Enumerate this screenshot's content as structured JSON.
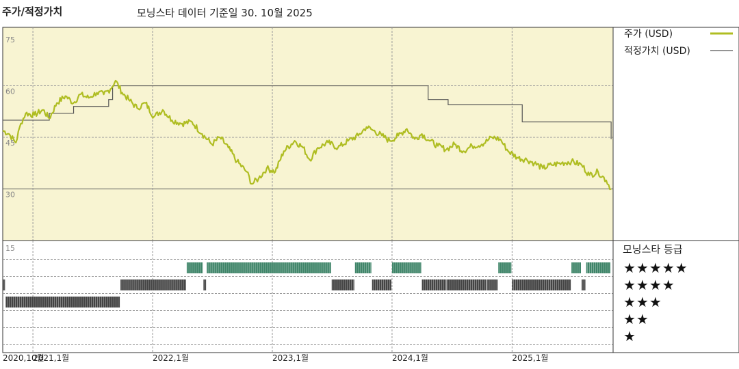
{
  "header": {
    "section_title": "주가/적정가치",
    "subtitle": "모닝스타 데이터 기준일 30. 10월 2025"
  },
  "colors": {
    "price_line": "#AFBD22",
    "fair_value_line": "#555555",
    "upper_panel_bg": "#F8F4D2",
    "five_star": "#3E8468",
    "four_star": "#444444",
    "three_star": "#444444"
  },
  "chart_data": [
    {
      "type": "line",
      "title": "",
      "y_ticks": [
        "75",
        "60",
        "45",
        "30"
      ],
      "ylim": [
        15,
        77
      ],
      "xlim": [
        "2020-10-01",
        "2025-11-05"
      ],
      "x_ticks": [
        {
          "date": "2020-10-01",
          "label": "2020,10월"
        },
        {
          "date": "2021-01-01",
          "label": "2021,1월"
        },
        {
          "date": "2022-01-01",
          "label": "2022,1월"
        },
        {
          "date": "2023-01-01",
          "label": "2023,1월"
        },
        {
          "date": "2024-01-01",
          "label": "2024,1월"
        },
        {
          "date": "2025-01-01",
          "label": "2025,1월"
        }
      ],
      "grid": true,
      "legend_position": "right",
      "series": [
        {
          "name": "주가 (USD)",
          "points": [
            [
              "2020-10-01",
              47
            ],
            [
              "2020-10-20",
              46
            ],
            [
              "2020-11-10",
              43.5
            ],
            [
              "2020-11-25",
              49
            ],
            [
              "2020-12-10",
              52
            ],
            [
              "2021-01-05",
              51.5
            ],
            [
              "2021-02-01",
              53
            ],
            [
              "2021-02-20",
              50.5
            ],
            [
              "2021-03-15",
              55
            ],
            [
              "2021-04-10",
              57
            ],
            [
              "2021-05-05",
              55
            ],
            [
              "2021-05-25",
              57.5
            ],
            [
              "2021-06-20",
              56.5
            ],
            [
              "2021-07-15",
              58
            ],
            [
              "2021-08-05",
              57.5
            ],
            [
              "2021-08-25",
              59
            ],
            [
              "2021-09-10",
              61.5
            ],
            [
              "2021-09-30",
              58
            ],
            [
              "2021-10-20",
              56
            ],
            [
              "2021-11-15",
              53.5
            ],
            [
              "2021-12-10",
              55
            ],
            [
              "2022-01-05",
              51
            ],
            [
              "2022-02-01",
              53
            ],
            [
              "2022-03-01",
              50
            ],
            [
              "2022-04-01",
              49
            ],
            [
              "2022-05-01",
              49.5
            ],
            [
              "2022-06-01",
              46
            ],
            [
              "2022-07-01",
              43
            ],
            [
              "2022-07-25",
              45
            ],
            [
              "2022-08-20",
              42
            ],
            [
              "2022-09-15",
              38
            ],
            [
              "2022-10-15",
              35
            ],
            [
              "2022-10-30",
              31.5
            ],
            [
              "2022-11-20",
              33
            ],
            [
              "2022-12-15",
              36
            ],
            [
              "2023-01-10",
              35
            ],
            [
              "2023-02-05",
              41
            ],
            [
              "2023-03-10",
              44
            ],
            [
              "2023-04-05",
              42
            ],
            [
              "2023-04-25",
              38.5
            ],
            [
              "2023-05-20",
              42
            ],
            [
              "2023-06-20",
              43.5
            ],
            [
              "2023-07-20",
              42
            ],
            [
              "2023-08-20",
              44
            ],
            [
              "2023-09-20",
              45.5
            ],
            [
              "2023-10-15",
              48
            ],
            [
              "2023-11-05",
              47
            ],
            [
              "2023-12-01",
              45.5
            ],
            [
              "2023-12-25",
              44
            ],
            [
              "2024-01-20",
              45.5
            ],
            [
              "2024-02-15",
              47.5
            ],
            [
              "2024-03-10",
              44.5
            ],
            [
              "2024-04-01",
              46
            ],
            [
              "2024-04-25",
              44
            ],
            [
              "2024-05-20",
              42.5
            ],
            [
              "2024-06-15",
              41.5
            ],
            [
              "2024-07-10",
              43
            ],
            [
              "2024-08-05",
              41
            ],
            [
              "2024-09-01",
              42.5
            ],
            [
              "2024-10-01",
              43
            ],
            [
              "2024-11-01",
              45
            ],
            [
              "2024-11-25",
              44.5
            ],
            [
              "2024-12-20",
              41
            ],
            [
              "2025-01-20",
              39
            ],
            [
              "2025-02-15",
              38.5
            ],
            [
              "2025-03-10",
              37.5
            ],
            [
              "2025-04-05",
              36
            ],
            [
              "2025-05-01",
              37
            ],
            [
              "2025-06-01",
              37.5
            ],
            [
              "2025-07-01",
              38
            ],
            [
              "2025-08-01",
              37
            ],
            [
              "2025-08-25",
              34
            ],
            [
              "2025-09-20",
              35
            ],
            [
              "2025-10-15",
              32.5
            ],
            [
              "2025-10-30",
              30
            ]
          ]
        },
        {
          "name": "적정가치 (USD)",
          "steps": [
            [
              "2020-10-01",
              50
            ],
            [
              "2021-02-20",
              52
            ],
            [
              "2021-05-05",
              54
            ],
            [
              "2021-08-20",
              56
            ],
            [
              "2021-09-01",
              60
            ],
            [
              "2024-04-20",
              56
            ],
            [
              "2024-06-20",
              54.5
            ],
            [
              "2025-02-01",
              49.5
            ],
            [
              "2025-10-30",
              44.5
            ]
          ]
        }
      ]
    },
    {
      "type": "bar",
      "title": "모닝스타 등급",
      "y_tick": "15",
      "rating_labels": [
        "★★★★★",
        "★★★★",
        "★★★",
        "★★",
        "★"
      ],
      "ratings_timeline": [
        {
          "start": "2020-10-01",
          "end": "2020-10-10",
          "stars": 4
        },
        {
          "start": "2020-10-10",
          "end": "2021-09-25",
          "stars": 3
        },
        {
          "start": "2021-09-25",
          "end": "2022-04-15",
          "stars": 4
        },
        {
          "start": "2022-04-15",
          "end": "2022-06-05",
          "stars": 5
        },
        {
          "start": "2022-06-05",
          "end": "2022-06-15",
          "stars": 4
        },
        {
          "start": "2022-06-15",
          "end": "2023-07-01",
          "stars": 5
        },
        {
          "start": "2023-07-01",
          "end": "2023-09-10",
          "stars": 4
        },
        {
          "start": "2023-09-10",
          "end": "2023-11-01",
          "stars": 5
        },
        {
          "start": "2023-11-01",
          "end": "2024-01-01",
          "stars": 4
        },
        {
          "start": "2024-01-01",
          "end": "2024-04-01",
          "stars": 5
        },
        {
          "start": "2024-04-01",
          "end": "2024-06-15",
          "stars": 4
        },
        {
          "start": "2024-06-15",
          "end": "2024-10-15",
          "stars": 4
        },
        {
          "start": "2024-10-15",
          "end": "2024-11-20",
          "stars": 4
        },
        {
          "start": "2024-11-20",
          "end": "2025-01-01",
          "stars": 5
        },
        {
          "start": "2025-01-01",
          "end": "2025-07-01",
          "stars": 4
        },
        {
          "start": "2025-07-01",
          "end": "2025-08-01",
          "stars": 5
        },
        {
          "start": "2025-08-01",
          "end": "2025-08-15",
          "stars": 4
        },
        {
          "start": "2025-08-15",
          "end": "2025-10-30",
          "stars": 5
        }
      ]
    }
  ]
}
